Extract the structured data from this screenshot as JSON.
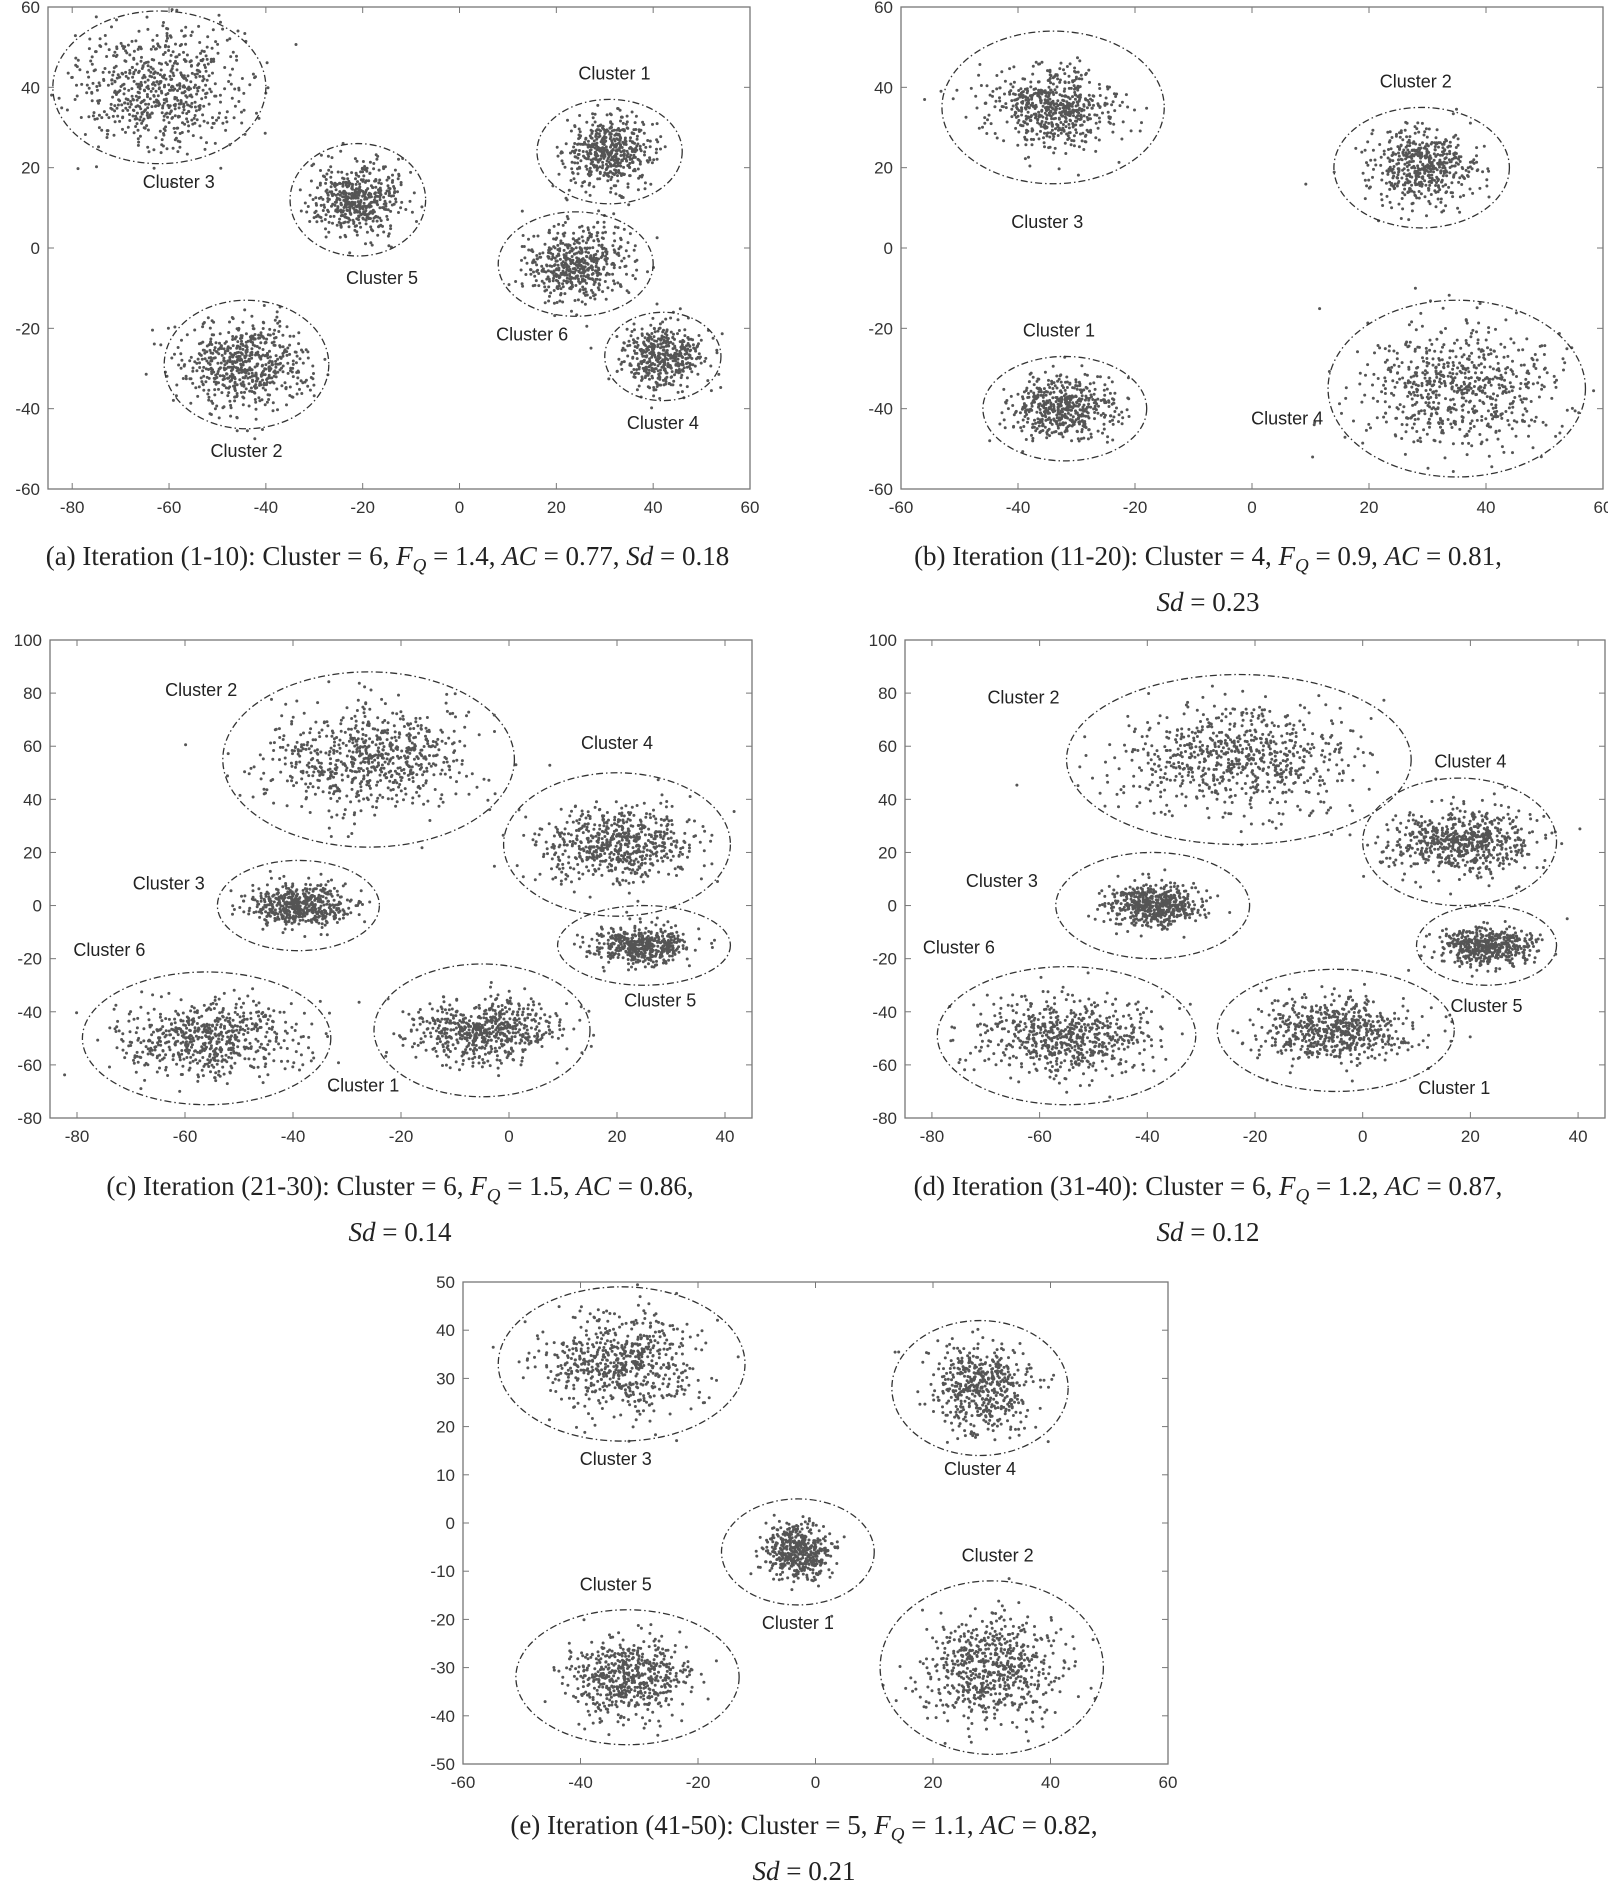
{
  "chart_data": [
    {
      "type": "scatter",
      "panel": "a",
      "caption": {
        "line1": "(a)  Iteration (1-10): Cluster = 6, F_Q = 1.4, AC = 0.77, Sd = 0.18",
        "line2": ""
      },
      "xlim": [
        -85,
        60
      ],
      "ylim": [
        -60,
        60
      ],
      "xticks": [
        -80,
        -60,
        -40,
        -20,
        0,
        20,
        40,
        60
      ],
      "yticks": [
        -60,
        -40,
        -20,
        0,
        20,
        40,
        60
      ],
      "grid": false,
      "point_color": "#555555",
      "clusters": [
        {
          "label": "Cluster 1",
          "cx": 31,
          "cy": 24,
          "rx": 15,
          "ry": 13,
          "sx": 4.5,
          "sy": 4.2,
          "n": 520
        },
        {
          "label": "Cluster 2",
          "cx": -44,
          "cy": -29,
          "rx": 17,
          "ry": 16,
          "sx": 6.5,
          "sy": 5.5,
          "n": 620
        },
        {
          "label": "Cluster 3",
          "cx": -62,
          "cy": 40,
          "rx": 22,
          "ry": 19,
          "sx": 9,
          "sy": 7.5,
          "n": 680
        },
        {
          "label": "Cluster 4",
          "cx": 42,
          "cy": -27,
          "rx": 12,
          "ry": 11,
          "sx": 4,
          "sy": 4,
          "n": 460
        },
        {
          "label": "Cluster 5",
          "cx": -21,
          "cy": 12,
          "rx": 14,
          "ry": 14,
          "sx": 4.5,
          "sy": 4.5,
          "n": 500
        },
        {
          "label": "Cluster 6",
          "cx": 24,
          "cy": -4,
          "rx": 16,
          "ry": 13,
          "sx": 5.5,
          "sy": 4.5,
          "n": 520
        }
      ],
      "labels": [
        {
          "text": "Cluster 1",
          "x": 32,
          "y": 42
        },
        {
          "text": "Cluster 2",
          "x": -44,
          "y": -52
        },
        {
          "text": "Cluster 3",
          "x": -58,
          "y": 15
        },
        {
          "text": "Cluster 4",
          "x": 42,
          "y": -45
        },
        {
          "text": "Cluster 5",
          "x": -16,
          "y": -9
        },
        {
          "text": "Cluster 6",
          "x": 15,
          "y": -23
        }
      ]
    },
    {
      "type": "scatter",
      "panel": "b",
      "caption": {
        "line1": "(b)  Iteration (11-20): Cluster = 4, F_Q = 0.9, AC = 0.81,",
        "line2": "Sd = 0.23"
      },
      "xlim": [
        -60,
        60
      ],
      "ylim": [
        -60,
        60
      ],
      "xticks": [
        -60,
        -40,
        -20,
        0,
        20,
        40,
        60
      ],
      "yticks": [
        -60,
        -40,
        -20,
        0,
        20,
        40,
        60
      ],
      "grid": false,
      "point_color": "#555555",
      "clusters": [
        {
          "label": "Cluster 1",
          "cx": -32,
          "cy": -40,
          "rx": 14,
          "ry": 13,
          "sx": 4.5,
          "sy": 4,
          "n": 520
        },
        {
          "label": "Cluster 2",
          "cx": 29,
          "cy": 20,
          "rx": 15,
          "ry": 15,
          "sx": 4.5,
          "sy": 4.5,
          "n": 520
        },
        {
          "label": "Cluster 3",
          "cx": -34,
          "cy": 35,
          "rx": 19,
          "ry": 19,
          "sx": 5.5,
          "sy": 5,
          "n": 620
        },
        {
          "label": "Cluster 4",
          "cx": 35,
          "cy": -35,
          "rx": 22,
          "ry": 22,
          "sx": 8.5,
          "sy": 8,
          "n": 680
        }
      ],
      "labels": [
        {
          "text": "Cluster 1",
          "x": -33,
          "y": -22
        },
        {
          "text": "Cluster 2",
          "x": 28,
          "y": 40
        },
        {
          "text": "Cluster 3",
          "x": -35,
          "y": 5
        },
        {
          "text": "Cluster 4",
          "x": 6,
          "y": -44
        }
      ]
    },
    {
      "type": "scatter",
      "panel": "c",
      "caption": {
        "line1": "(c)  Iteration (21-30): Cluster = 6, F_Q = 1.5, AC = 0.86,",
        "line2": "Sd = 0.14"
      },
      "xlim": [
        -85,
        45
      ],
      "ylim": [
        -80,
        100
      ],
      "xticks": [
        -80,
        -60,
        -40,
        -20,
        0,
        20,
        40
      ],
      "yticks": [
        -80,
        -60,
        -40,
        -20,
        0,
        20,
        40,
        60,
        80,
        100
      ],
      "grid": false,
      "point_color": "#555555",
      "clusters": [
        {
          "label": "Cluster 1",
          "cx": -5,
          "cy": -47,
          "rx": 20,
          "ry": 25,
          "sx": 7,
          "sy": 6,
          "n": 620
        },
        {
          "label": "Cluster 2",
          "cx": -26,
          "cy": 55,
          "rx": 27,
          "ry": 33,
          "sx": 10,
          "sy": 10,
          "n": 720
        },
        {
          "label": "Cluster 3",
          "cx": -39,
          "cy": 0,
          "rx": 15,
          "ry": 17,
          "sx": 4.5,
          "sy": 4,
          "n": 540
        },
        {
          "label": "Cluster 4",
          "cx": 20,
          "cy": 23,
          "rx": 21,
          "ry": 27,
          "sx": 7,
          "sy": 7,
          "n": 640
        },
        {
          "label": "Cluster 5",
          "cx": 25,
          "cy": -15,
          "rx": 16,
          "ry": 15,
          "sx": 4.5,
          "sy": 3.5,
          "n": 480
        },
        {
          "label": "Cluster 6",
          "cx": -56,
          "cy": -50,
          "rx": 23,
          "ry": 25,
          "sx": 8,
          "sy": 7,
          "n": 640
        }
      ],
      "labels": [
        {
          "text": "Cluster 1",
          "x": -27,
          "y": -70
        },
        {
          "text": "Cluster 2",
          "x": -57,
          "y": 79
        },
        {
          "text": "Cluster 3",
          "x": -63,
          "y": 6
        },
        {
          "text": "Cluster 4",
          "x": 20,
          "y": 59
        },
        {
          "text": "Cluster 5",
          "x": 28,
          "y": -38
        },
        {
          "text": "Cluster 6",
          "x": -74,
          "y": -19
        }
      ]
    },
    {
      "type": "scatter",
      "panel": "d",
      "caption": {
        "line1": "(d)  Iteration (31-40): Cluster = 6, F_Q = 1.2, AC = 0.87,",
        "line2": "Sd = 0.12"
      },
      "xlim": [
        -85,
        45
      ],
      "ylim": [
        -80,
        100
      ],
      "xticks": [
        -80,
        -60,
        -40,
        -20,
        0,
        20,
        40
      ],
      "yticks": [
        -80,
        -60,
        -40,
        -20,
        0,
        20,
        40,
        60,
        80,
        100
      ],
      "grid": false,
      "point_color": "#555555",
      "clusters": [
        {
          "label": "Cluster 1",
          "cx": -5,
          "cy": -47,
          "rx": 22,
          "ry": 23,
          "sx": 7,
          "sy": 6,
          "n": 640
        },
        {
          "label": "Cluster 2",
          "cx": -23,
          "cy": 55,
          "rx": 32,
          "ry": 32,
          "sx": 11,
          "sy": 10,
          "n": 740
        },
        {
          "label": "Cluster 3",
          "cx": -39,
          "cy": 0,
          "rx": 18,
          "ry": 20,
          "sx": 4.5,
          "sy": 4,
          "n": 560
        },
        {
          "label": "Cluster 4",
          "cx": 18,
          "cy": 24,
          "rx": 18,
          "ry": 24,
          "sx": 7,
          "sy": 6,
          "n": 640
        },
        {
          "label": "Cluster 5",
          "cx": 23,
          "cy": -15,
          "rx": 13,
          "ry": 15,
          "sx": 4.5,
          "sy": 3.5,
          "n": 480
        },
        {
          "label": "Cluster 6",
          "cx": -55,
          "cy": -49,
          "rx": 24,
          "ry": 26,
          "sx": 8,
          "sy": 7,
          "n": 640
        }
      ],
      "labels": [
        {
          "text": "Cluster 1",
          "x": 17,
          "y": -71
        },
        {
          "text": "Cluster 2",
          "x": -63,
          "y": 76
        },
        {
          "text": "Cluster 3",
          "x": -67,
          "y": 7
        },
        {
          "text": "Cluster 4",
          "x": 20,
          "y": 52
        },
        {
          "text": "Cluster 5",
          "x": 23,
          "y": -40
        },
        {
          "text": "Cluster 6",
          "x": -75,
          "y": -18
        }
      ]
    },
    {
      "type": "scatter",
      "panel": "e",
      "caption": {
        "line1": "(e)  Iteration (41-50): Cluster = 5, F_Q = 1.1, AC = 0.82,",
        "line2": "Sd = 0.21"
      },
      "xlim": [
        -60,
        60
      ],
      "ylim": [
        -50,
        50
      ],
      "xticks": [
        -60,
        -40,
        -20,
        0,
        20,
        40,
        60
      ],
      "yticks": [
        -50,
        -40,
        -30,
        -20,
        -10,
        0,
        10,
        20,
        30,
        40,
        50
      ],
      "grid": false,
      "point_color": "#555555",
      "clusters": [
        {
          "label": "Cluster 1",
          "cx": -3,
          "cy": -6,
          "rx": 13,
          "ry": 11,
          "sx": 3,
          "sy": 3,
          "n": 460
        },
        {
          "label": "Cluster 2",
          "cx": 30,
          "cy": -30,
          "rx": 19,
          "ry": 18,
          "sx": 6,
          "sy": 5.5,
          "n": 640
        },
        {
          "label": "Cluster 3",
          "cx": -33,
          "cy": 33,
          "rx": 21,
          "ry": 16,
          "sx": 6.5,
          "sy": 5,
          "n": 640
        },
        {
          "label": "Cluster 4",
          "cx": 28,
          "cy": 28,
          "rx": 15,
          "ry": 14,
          "sx": 4,
          "sy": 4.5,
          "n": 520
        },
        {
          "label": "Cluster 5",
          "cx": -32,
          "cy": -32,
          "rx": 19,
          "ry": 14,
          "sx": 5,
          "sy": 4,
          "n": 580
        }
      ],
      "labels": [
        {
          "text": "Cluster 1",
          "x": -3,
          "y": -22
        },
        {
          "text": "Cluster 2",
          "x": 31,
          "y": -8
        },
        {
          "text": "Cluster 3",
          "x": -34,
          "y": 12
        },
        {
          "text": "Cluster 4",
          "x": 28,
          "y": 10
        },
        {
          "text": "Cluster 5",
          "x": -34,
          "y": -14
        }
      ]
    }
  ]
}
